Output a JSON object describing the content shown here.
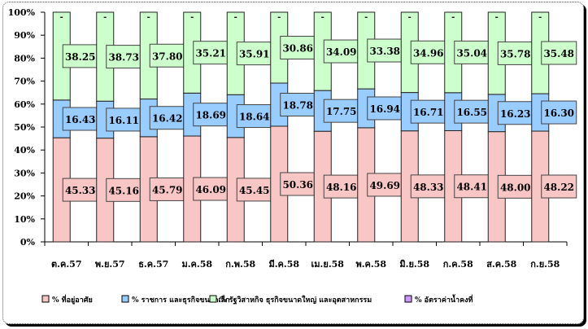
{
  "chart_data": {
    "type": "bar",
    "stacked": "percent",
    "categories": [
      "ต.ค.57",
      "พ.ย.57",
      "ธ.ค.57",
      "ม.ค.58",
      "ก.พ.58",
      "มี.ค.58",
      "เม.ย.58",
      "พ.ค.58",
      "มิ.ย.58",
      "ก.ค.58",
      "ส.ค.58",
      "ก.ย.58"
    ],
    "series": [
      {
        "name": "% ที่อยู่อาศัย",
        "color": "#f9c6c6",
        "values": [
          45.33,
          45.16,
          45.79,
          46.09,
          45.45,
          50.36,
          48.16,
          49.69,
          48.33,
          48.41,
          48.0,
          48.22
        ]
      },
      {
        "name": "% ราชการ และธุรกิจขนาดเล็ก",
        "color": "#99ccff",
        "values": [
          16.43,
          16.11,
          16.42,
          18.69,
          18.64,
          18.78,
          17.75,
          16.94,
          16.71,
          16.55,
          16.23,
          16.3
        ]
      },
      {
        "name": "% รัฐวิสาหกิจ ธุรกิจขนาดใหญ่ และอุตสาหกรรม",
        "color": "#ccffcc",
        "values": [
          38.25,
          38.73,
          37.8,
          35.21,
          35.91,
          30.86,
          34.09,
          33.38,
          34.96,
          35.04,
          35.78,
          35.48
        ]
      },
      {
        "name": "% อัตราค่าน้ำคงที่",
        "color": "#cc99ff",
        "values": [
          0,
          0,
          0,
          0,
          0,
          0,
          0,
          0,
          0,
          0,
          0,
          0
        ],
        "label": "-"
      }
    ],
    "yticks": [
      "0%",
      "10%",
      "20%",
      "30%",
      "40%",
      "50%",
      "60%",
      "70%",
      "80%",
      "90%",
      "100%"
    ],
    "ylim": [
      0,
      100
    ],
    "legend": "bottom"
  }
}
